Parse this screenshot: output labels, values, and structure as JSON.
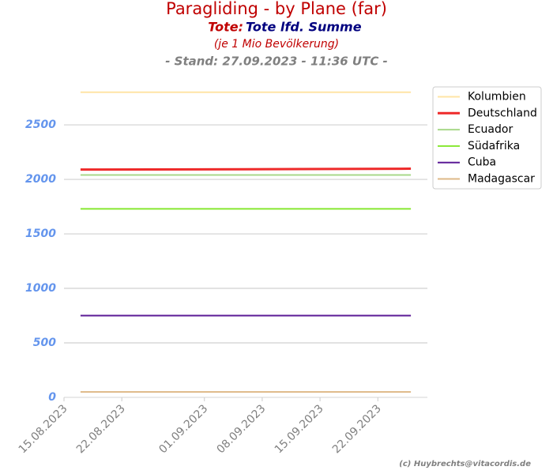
{
  "chart_data": {
    "type": "line",
    "title": "Paragliding - by Plane (far)",
    "subtitle_label": "Tote:",
    "subtitle": "Tote lfd. Summe",
    "subtitle2": "(je 1 Mio Bevölkerung)",
    "subtitle3": "- Stand: 27.09.2023 - 11:36 UTC -",
    "credit": "(c) Huybrechts@vitacordis.de",
    "x": [
      "17.08.2023",
      "06.09.2023",
      "26.09.2023"
    ],
    "xlim": [
      "15.08.2023",
      "28.09.2023"
    ],
    "xticks": [
      "15.08.2023",
      "22.08.2023",
      "01.09.2023",
      "08.09.2023",
      "15.09.2023",
      "22.09.2023"
    ],
    "ylim": [
      0,
      2950
    ],
    "yticks": [
      0,
      500,
      1000,
      1500,
      2000,
      2500
    ],
    "grid": true,
    "legend": "upper-right",
    "series": [
      {
        "name": "Kolumbien",
        "color": "#ffe4a6",
        "width": 2,
        "values": [
          2800,
          2800,
          2800
        ]
      },
      {
        "name": "Deutschland",
        "color": "#ee2a2a",
        "width": 3,
        "values": [
          2090,
          2093,
          2098
        ]
      },
      {
        "name": "Ecuador",
        "color": "#a8d88a",
        "width": 2,
        "values": [
          2040,
          2040,
          2040
        ]
      },
      {
        "name": "Südafrika",
        "color": "#86e830",
        "width": 2,
        "values": [
          1730,
          1730,
          1730
        ]
      },
      {
        "name": "Cuba",
        "color": "#5b1a96",
        "width": 2,
        "values": [
          750,
          750,
          750
        ]
      },
      {
        "name": "Madagascar",
        "color": "#deb887",
        "width": 2,
        "values": [
          50,
          50,
          50
        ]
      }
    ]
  }
}
